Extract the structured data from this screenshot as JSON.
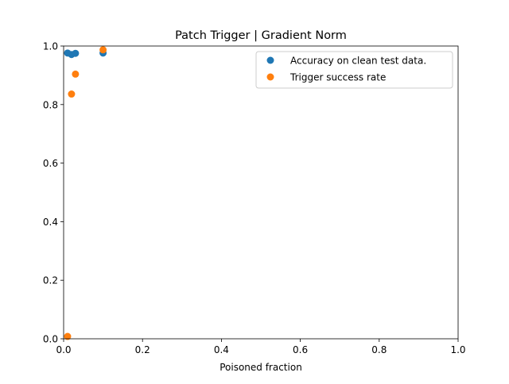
{
  "chart_data": {
    "type": "scatter",
    "title": "Patch Trigger | Gradient Norm",
    "xlabel": "Poisoned fraction",
    "ylabel": "",
    "xlim": [
      0,
      1
    ],
    "ylim": [
      0,
      1
    ],
    "xticks": [
      "0.0",
      "0.2",
      "0.4",
      "0.6",
      "0.8",
      "1.0"
    ],
    "yticks": [
      "0.0",
      "0.2",
      "0.4",
      "0.6",
      "0.8",
      "1.0"
    ],
    "legend_position": "top-right",
    "grid": false,
    "series": [
      {
        "name": "Accuracy on clean test data.",
        "color": "#1f77b4",
        "points": [
          {
            "x": 0.01,
            "y": 0.976
          },
          {
            "x": 0.02,
            "y": 0.971
          },
          {
            "x": 0.03,
            "y": 0.975
          },
          {
            "x": 0.1,
            "y": 0.976
          }
        ]
      },
      {
        "name": "Trigger success rate",
        "color": "#ff7f0e",
        "points": [
          {
            "x": 0.01,
            "y": 0.008
          },
          {
            "x": 0.02,
            "y": 0.836
          },
          {
            "x": 0.03,
            "y": 0.904
          },
          {
            "x": 0.1,
            "y": 0.987
          }
        ]
      }
    ]
  }
}
